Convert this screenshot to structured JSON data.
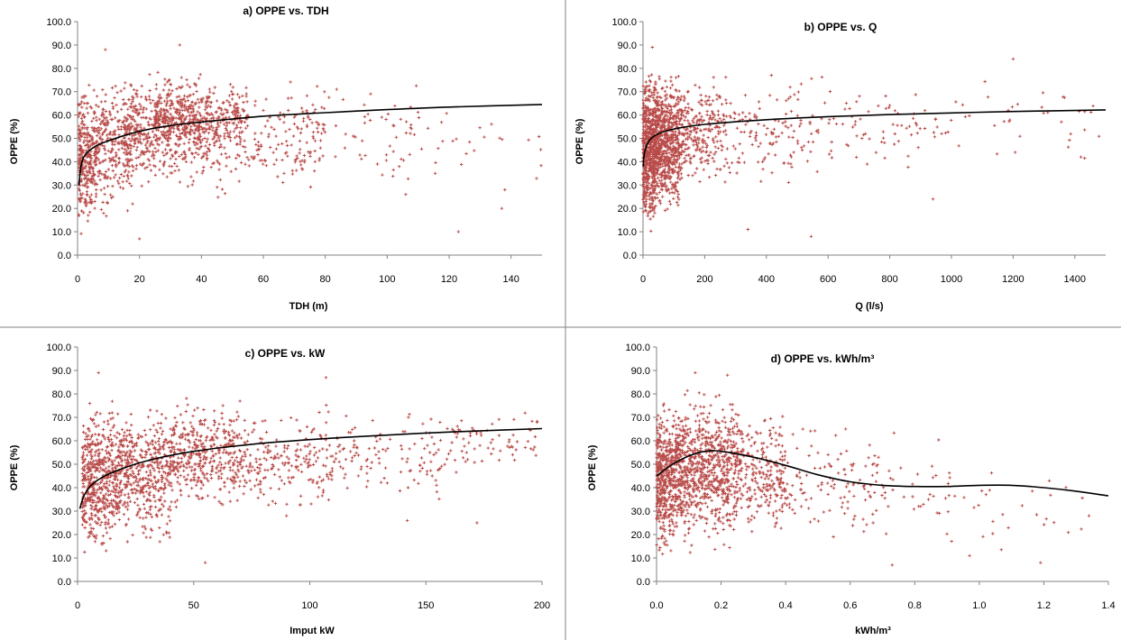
{
  "colors": {
    "marker": "#b84a48",
    "trend": "#000000",
    "axis": "#808080"
  },
  "chart_data": [
    {
      "type": "scatter",
      "title": "a) OPPE vs. TDH",
      "xlabel": "TDH (m)",
      "ylabel": "OPPE (%)",
      "xlim": [
        0,
        150
      ],
      "ylim": [
        0,
        100
      ],
      "xticks": [
        0,
        20,
        40,
        60,
        80,
        100,
        120,
        140
      ],
      "yticks": [
        "0.0",
        "10.0",
        "20.0",
        "30.0",
        "40.0",
        "50.0",
        "60.0",
        "70.0",
        "80.0",
        "90.0",
        "100.0"
      ],
      "grid": false,
      "cloud": [
        {
          "x": [
            0.3,
            6
          ],
          "y": [
            5,
            80
          ],
          "n": 300
        },
        {
          "x": [
            6,
            18
          ],
          "y": [
            10,
            85
          ],
          "n": 260
        },
        {
          "x": [
            15,
            45
          ],
          "y": [
            25,
            82
          ],
          "n": 520
        },
        {
          "x": [
            25,
            55
          ],
          "y": [
            40,
            78
          ],
          "n": 380
        },
        {
          "x": [
            45,
            80
          ],
          "y": [
            20,
            80
          ],
          "n": 180
        },
        {
          "x": [
            70,
            110
          ],
          "y": [
            25,
            78
          ],
          "n": 70
        },
        {
          "x": [
            100,
            150
          ],
          "y": [
            25,
            75
          ],
          "n": 30
        }
      ],
      "points": [
        {
          "x": 123,
          "y": 10
        },
        {
          "x": 137,
          "y": 20
        },
        {
          "x": 106,
          "y": 26
        },
        {
          "x": 138,
          "y": 28
        },
        {
          "x": 33,
          "y": 90
        },
        {
          "x": 9,
          "y": 88
        },
        {
          "x": 20,
          "y": 7
        }
      ],
      "trend": [
        [
          0.5,
          30
        ],
        [
          1,
          37
        ],
        [
          2,
          42
        ],
        [
          5,
          46
        ],
        [
          10,
          49
        ],
        [
          20,
          53
        ],
        [
          30,
          55.5
        ],
        [
          40,
          57
        ],
        [
          60,
          59.5
        ],
        [
          80,
          61
        ],
        [
          100,
          62.3
        ],
        [
          120,
          63.4
        ],
        [
          150,
          64.5
        ]
      ]
    },
    {
      "type": "scatter",
      "title": "b) OPPE  vs.  Q",
      "xlabel": "Q (l/s)",
      "ylabel": "OPPE (%)",
      "xlim": [
        0,
        1500
      ],
      "ylim": [
        0,
        100
      ],
      "xticks": [
        0,
        200,
        400,
        600,
        800,
        1000,
        1200,
        1400
      ],
      "yticks": [
        "0.0",
        "10.0",
        "20.0",
        "30.0",
        "40.0",
        "50.0",
        "60.0",
        "70.0",
        "80.0",
        "90.0",
        "100.0"
      ],
      "grid": false,
      "cloud": [
        {
          "x": [
            0,
            40
          ],
          "y": [
            5,
            85
          ],
          "n": 600
        },
        {
          "x": [
            40,
            120
          ],
          "y": [
            15,
            82
          ],
          "n": 650
        },
        {
          "x": [
            120,
            250
          ],
          "y": [
            25,
            80
          ],
          "n": 250
        },
        {
          "x": [
            250,
            500
          ],
          "y": [
            25,
            80
          ],
          "n": 130
        },
        {
          "x": [
            500,
            900
          ],
          "y": [
            30,
            82
          ],
          "n": 90
        },
        {
          "x": [
            900,
            1480
          ],
          "y": [
            35,
            80
          ],
          "n": 45
        }
      ],
      "points": [
        {
          "x": 545,
          "y": 8
        },
        {
          "x": 940,
          "y": 24
        },
        {
          "x": 1420,
          "y": 42
        },
        {
          "x": 1200,
          "y": 84
        },
        {
          "x": 340,
          "y": 11
        },
        {
          "x": 30,
          "y": 89
        }
      ],
      "trend": [
        [
          1,
          38
        ],
        [
          5,
          44
        ],
        [
          20,
          49
        ],
        [
          50,
          52
        ],
        [
          100,
          54
        ],
        [
          200,
          56
        ],
        [
          400,
          58
        ],
        [
          600,
          59.3
        ],
        [
          800,
          60.2
        ],
        [
          1000,
          60.9
        ],
        [
          1200,
          61.5
        ],
        [
          1500,
          62.2
        ]
      ]
    },
    {
      "type": "scatter",
      "title": "c) OPPE  vs.  kW",
      "xlabel": "Imput kW",
      "ylabel": "OPPE (%)",
      "xlim": [
        0,
        200
      ],
      "ylim": [
        0,
        100
      ],
      "xticks": [
        0,
        50,
        100,
        150,
        200
      ],
      "yticks": [
        "0.0",
        "10.0",
        "20.0",
        "30.0",
        "40.0",
        "50.0",
        "60.0",
        "70.0",
        "80.0",
        "90.0",
        "100.0"
      ],
      "grid": false,
      "cloud": [
        {
          "x": [
            2,
            12
          ],
          "y": [
            5,
            80
          ],
          "n": 360
        },
        {
          "x": [
            12,
            40
          ],
          "y": [
            10,
            80
          ],
          "n": 620
        },
        {
          "x": [
            40,
            70
          ],
          "y": [
            25,
            82
          ],
          "n": 420
        },
        {
          "x": [
            70,
            110
          ],
          "y": [
            25,
            80
          ],
          "n": 220
        },
        {
          "x": [
            110,
            160
          ],
          "y": [
            30,
            78
          ],
          "n": 120
        },
        {
          "x": [
            160,
            198
          ],
          "y": [
            45,
            75
          ],
          "n": 70
        }
      ],
      "points": [
        {
          "x": 142,
          "y": 26
        },
        {
          "x": 172,
          "y": 25
        },
        {
          "x": 9,
          "y": 89
        },
        {
          "x": 107,
          "y": 87
        },
        {
          "x": 55,
          "y": 8
        }
      ],
      "trend": [
        [
          1,
          31
        ],
        [
          3,
          37
        ],
        [
          7,
          42
        ],
        [
          15,
          46.5
        ],
        [
          30,
          51.5
        ],
        [
          50,
          55.5
        ],
        [
          75,
          58.5
        ],
        [
          100,
          60.5
        ],
        [
          125,
          62
        ],
        [
          150,
          63.3
        ],
        [
          175,
          64.3
        ],
        [
          200,
          65.2
        ]
      ]
    },
    {
      "type": "scatter",
      "title": "d) OPPE  vs.  kWh/m³",
      "xlabel": "kWh/m³",
      "ylabel": "OPPE (%)",
      "xlim": [
        0,
        1.4
      ],
      "ylim": [
        0,
        100
      ],
      "xticks": [
        "0.0",
        "0.2",
        "0.4",
        "0.6",
        "0.8",
        "1.0",
        "1.2",
        "1.4"
      ],
      "yticks": [
        "0.0",
        "10.0",
        "20.0",
        "30.0",
        "40.0",
        "50.0",
        "60.0",
        "70.0",
        "80.0",
        "90.0",
        "100.0"
      ],
      "grid": false,
      "cloud": [
        {
          "x": [
            0,
            0.06
          ],
          "y": [
            5,
            82
          ],
          "n": 450
        },
        {
          "x": [
            0.06,
            0.25
          ],
          "y": [
            10,
            85
          ],
          "n": 800
        },
        {
          "x": [
            0.25,
            0.4
          ],
          "y": [
            15,
            78
          ],
          "n": 260
        },
        {
          "x": [
            0.4,
            0.7
          ],
          "y": [
            10,
            72
          ],
          "n": 120
        },
        {
          "x": [
            0.7,
            1.0
          ],
          "y": [
            8,
            65
          ],
          "n": 40
        },
        {
          "x": [
            1.0,
            1.35
          ],
          "y": [
            8,
            55
          ],
          "n": 22
        }
      ],
      "points": [
        {
          "x": 1.19,
          "y": 8
        },
        {
          "x": 0.73,
          "y": 7
        },
        {
          "x": 0.97,
          "y": 11
        },
        {
          "x": 1.34,
          "y": 28
        },
        {
          "x": 0.12,
          "y": 89
        },
        {
          "x": 0.22,
          "y": 88
        }
      ],
      "trend": [
        [
          0,
          45
        ],
        [
          0.05,
          50
        ],
        [
          0.1,
          53.5
        ],
        [
          0.15,
          55.5
        ],
        [
          0.2,
          55.5
        ],
        [
          0.3,
          53
        ],
        [
          0.4,
          49.5
        ],
        [
          0.5,
          45.5
        ],
        [
          0.6,
          42.5
        ],
        [
          0.7,
          41
        ],
        [
          0.8,
          40.5
        ],
        [
          0.9,
          40.5
        ],
        [
          1.0,
          41
        ],
        [
          1.1,
          41
        ],
        [
          1.2,
          40
        ],
        [
          1.3,
          38.5
        ],
        [
          1.4,
          36.5
        ]
      ]
    }
  ]
}
